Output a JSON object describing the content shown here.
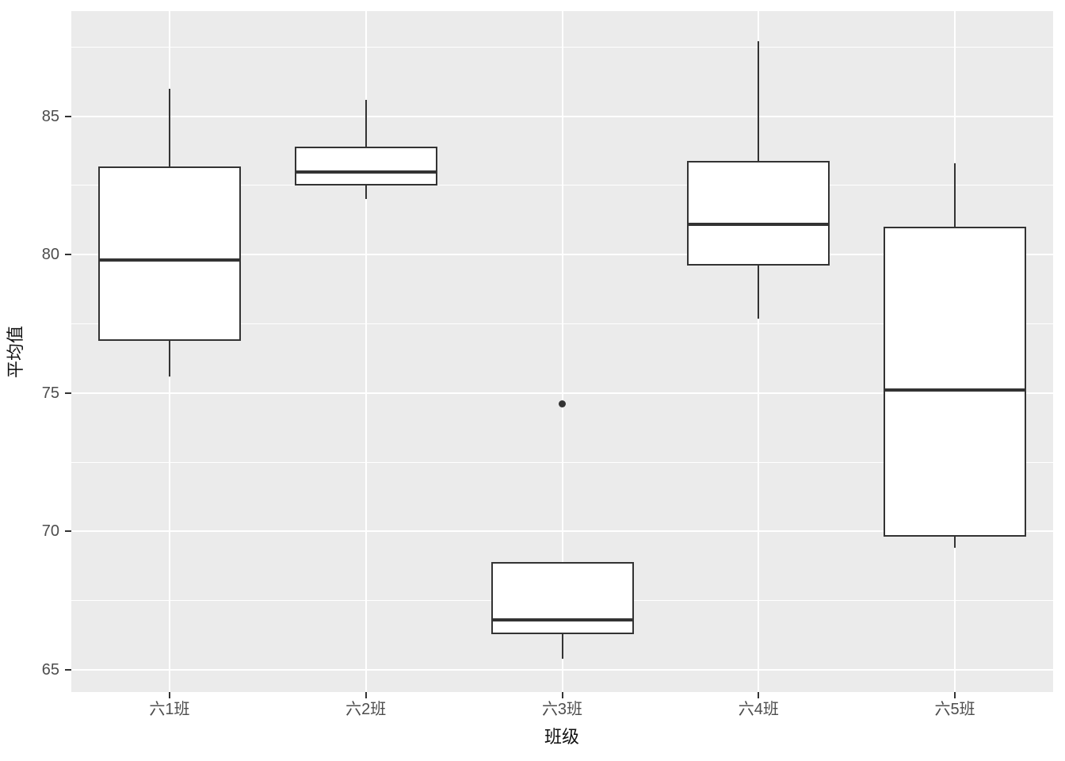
{
  "chart_data": {
    "type": "boxplot",
    "title": "",
    "xlabel": "班级",
    "ylabel": "平均值",
    "categories": [
      "六1班",
      "六2班",
      "六3班",
      "六4班",
      "六5班"
    ],
    "y_ticks": [
      65,
      70,
      75,
      80,
      85
    ],
    "y_minor_ticks": [
      67.5,
      72.5,
      77.5,
      82.5,
      87.5
    ],
    "ylim": [
      64.2,
      88.8
    ],
    "grid": "on",
    "legend": "none",
    "series": [
      {
        "category": "六1班",
        "min": 75.6,
        "q1": 76.9,
        "median": 79.8,
        "q3": 83.2,
        "max": 86.0,
        "outliers": []
      },
      {
        "category": "六2班",
        "min": 82.0,
        "q1": 82.5,
        "median": 83.0,
        "q3": 83.9,
        "max": 85.6,
        "outliers": []
      },
      {
        "category": "六3班",
        "min": 65.4,
        "q1": 66.3,
        "median": 66.8,
        "q3": 68.9,
        "max": 68.9,
        "outliers": [
          74.6
        ]
      },
      {
        "category": "六4班",
        "min": 77.7,
        "q1": 79.6,
        "median": 81.1,
        "q3": 83.4,
        "max": 87.7,
        "outliers": []
      },
      {
        "category": "六5班",
        "min": 69.4,
        "q1": 69.8,
        "median": 75.1,
        "q3": 81.0,
        "max": 83.3,
        "outliers": []
      }
    ],
    "colors": {
      "panel_background": "#EBEBEB",
      "gridline": "#FFFFFF",
      "box_border": "#333333",
      "box_fill": "#FFFFFF",
      "median_line": "#333333",
      "outlier": "#333333",
      "tick_label": "#4D4D4D",
      "axis_title": "#111111"
    }
  }
}
